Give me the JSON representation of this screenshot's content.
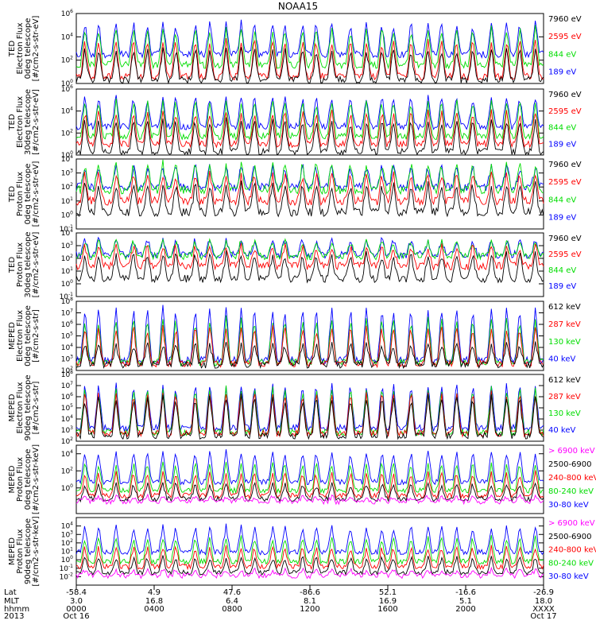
{
  "title": "NOAA15",
  "colors": {
    "blue": "#0000ff",
    "red": "#ff0000",
    "green": "#00dd00",
    "black": "#000000",
    "magenta": "#ff00ff"
  },
  "footer": {
    "row_labels": [
      "Lat",
      "MLT",
      "hhmm",
      "2013"
    ],
    "ticks": [
      {
        "lat": "-58.4",
        "mlt": "3.0",
        "hhmm": "0000",
        "date": "Oct 16"
      },
      {
        "lat": "4.9",
        "mlt": "16.8",
        "hhmm": "0400",
        "date": ""
      },
      {
        "lat": "47.6",
        "mlt": "6.4",
        "hhmm": "0800",
        "date": ""
      },
      {
        "lat": "-86.6",
        "mlt": "8.1",
        "hhmm": "1200",
        "date": ""
      },
      {
        "lat": "52.1",
        "mlt": "16.9",
        "hhmm": "1600",
        "date": ""
      },
      {
        "lat": "-16.6",
        "mlt": "5.1",
        "hhmm": "2000",
        "date": ""
      },
      {
        "lat": "-26.9",
        "mlt": "18.0",
        "hhmm": "XXXX",
        "date": "Oct 17"
      }
    ]
  },
  "chart_data": [
    {
      "type": "line",
      "ylog": true,
      "ylim_exp": [
        0,
        6
      ],
      "y_exponents": [
        0,
        2,
        4,
        6
      ],
      "ylabel": [
        "TED",
        "Electron Flux",
        "0deg telescope",
        "[#/cm2-s-str-eV]"
      ],
      "legend": [
        {
          "label": "7960 eV",
          "color": "#000000"
        },
        {
          "label": "2595 eV",
          "color": "#ff0000"
        },
        {
          "label": "844 eV",
          "color": "#00dd00"
        },
        {
          "label": "189 eV",
          "color": "#0000ff"
        }
      ],
      "series_levels": {
        "blue": 2.5,
        "green": 1.6,
        "red": 0.6,
        "black": 0.3
      },
      "series_peaks": {
        "blue": 5.2,
        "green": 4.8,
        "red": 3.8,
        "black": 3.0
      }
    },
    {
      "type": "line",
      "ylog": true,
      "ylim_exp": [
        0,
        6
      ],
      "y_exponents": [
        0,
        2,
        4,
        6
      ],
      "ylabel": [
        "TED",
        "Electron Flux",
        "30deg telescope",
        "[#/cm2-s-str-eV]"
      ],
      "legend": [
        {
          "label": "7960 eV",
          "color": "#000000"
        },
        {
          "label": "2595 eV",
          "color": "#ff0000"
        },
        {
          "label": "844 eV",
          "color": "#00dd00"
        },
        {
          "label": "189 eV",
          "color": "#0000ff"
        }
      ],
      "series_levels": {
        "blue": 2.6,
        "green": 1.7,
        "red": 1.0,
        "black": 0.3
      },
      "series_peaks": {
        "blue": 5.3,
        "green": 5.0,
        "red": 4.0,
        "black": 3.2
      }
    },
    {
      "type": "line",
      "ylog": true,
      "ylim_exp": [
        -1,
        4
      ],
      "y_exponents": [
        -1,
        0,
        1,
        2,
        3,
        4
      ],
      "ylabel": [
        "TED",
        "Proton Flux",
        "0deg telescope",
        "[#/cm2-s-str-eV]"
      ],
      "legend": [
        {
          "label": "7960 eV",
          "color": "#000000"
        },
        {
          "label": "2595 eV",
          "color": "#ff0000"
        },
        {
          "label": "844 eV",
          "color": "#00dd00"
        },
        {
          "label": "189 eV",
          "color": "#0000ff"
        }
      ],
      "series_levels": {
        "blue": 2.0,
        "green": 1.8,
        "red": 1.0,
        "black": 0.2
      },
      "series_peaks": {
        "blue": 3.5,
        "green": 3.7,
        "red": 3.0,
        "black": 2.2
      }
    },
    {
      "type": "line",
      "ylog": true,
      "ylim_exp": [
        -1,
        4
      ],
      "y_exponents": [
        -1,
        0,
        1,
        2,
        3,
        4
      ],
      "ylabel": [
        "TED",
        "Proton Flux",
        "30deg telescope",
        "[#/cm2-s-str-eV]"
      ],
      "legend": [
        {
          "label": "7960 eV",
          "color": "#000000"
        },
        {
          "label": "2595 eV",
          "color": "#ff0000"
        },
        {
          "label": "844 eV",
          "color": "#00dd00"
        },
        {
          "label": "189 eV",
          "color": "#0000ff"
        }
      ],
      "series_levels": {
        "blue": 2.3,
        "green": 2.2,
        "red": 1.4,
        "black": 0.4
      },
      "series_peaks": {
        "blue": 3.5,
        "green": 3.4,
        "red": 3.0,
        "black": 2.4
      }
    },
    {
      "type": "line",
      "ylog": true,
      "ylim_exp": [
        2,
        8
      ],
      "y_exponents": [
        2,
        3,
        4,
        5,
        6,
        7,
        8
      ],
      "ylabel": [
        "MEPED",
        "Electron Flux",
        "0deg telescope",
        "[#/cm2-s-str]"
      ],
      "legend": [
        {
          "label": "612 keV",
          "color": "#000000"
        },
        {
          "label": "287 keV",
          "color": "#ff0000"
        },
        {
          "label": "130 keV",
          "color": "#00dd00"
        },
        {
          "label": "40 keV",
          "color": "#0000ff"
        }
      ],
      "series_levels": {
        "blue": 2.9,
        "green": 2.7,
        "red": 2.6,
        "black": 2.5
      },
      "series_peaks": {
        "blue": 7.5,
        "green": 6.5,
        "red": 5.8,
        "black": 4.3
      }
    },
    {
      "type": "line",
      "ylog": true,
      "ylim_exp": [
        2,
        8
      ],
      "y_exponents": [
        2,
        3,
        4,
        5,
        6,
        7,
        8
      ],
      "ylabel": [
        "MEPED",
        "Electron Flux",
        "90deg telescope",
        "[#/cm2-s-str]"
      ],
      "legend": [
        {
          "label": "612 keV",
          "color": "#000000"
        },
        {
          "label": "287 keV",
          "color": "#ff0000"
        },
        {
          "label": "130 keV",
          "color": "#00dd00"
        },
        {
          "label": "40 keV",
          "color": "#0000ff"
        }
      ],
      "series_levels": {
        "blue": 3.2,
        "green": 2.8,
        "red": 2.7,
        "black": 2.5
      },
      "series_peaks": {
        "blue": 7.2,
        "green": 6.8,
        "red": 6.4,
        "black": 6.0
      }
    },
    {
      "type": "line",
      "ylog": true,
      "ylim_exp": [
        -3,
        5
      ],
      "y_exponents": [
        0,
        2,
        4
      ],
      "ylabel": [
        "MEPED",
        "Proton Flux",
        "0deg telescope",
        "[#/cm2-s-str-keV]"
      ],
      "legend": [
        {
          "label": "> 6900 keV",
          "color": "#ff00ff"
        },
        {
          "label": "2500-6900",
          "color": "#000000"
        },
        {
          "label": "240-800 keV",
          "color": "#ff0000"
        },
        {
          "label": "80-240 keV",
          "color": "#00dd00"
        },
        {
          "label": "30-80 keV",
          "color": "#0000ff"
        }
      ],
      "series_levels": {
        "blue": 0.7,
        "green": -0.3,
        "red": -0.9,
        "black": -1.3,
        "magenta": -1.6
      },
      "series_peaks": {
        "blue": 4.3,
        "green": 3.0,
        "red": 1.8,
        "black": 0.5,
        "magenta": -1.0
      }
    },
    {
      "type": "line",
      "ylog": true,
      "ylim_exp": [
        -3,
        5
      ],
      "y_exponents": [
        -2,
        -1,
        0,
        1,
        2,
        3,
        4
      ],
      "ylabel": [
        "MEPED",
        "Proton Flux",
        "90deg telescope",
        "[#/cm2-s-str-keV]"
      ],
      "legend": [
        {
          "label": "> 6900 keV",
          "color": "#ff00ff"
        },
        {
          "label": "2500-6900",
          "color": "#000000"
        },
        {
          "label": "240-800 keV",
          "color": "#ff0000"
        },
        {
          "label": "80-240 keV",
          "color": "#00dd00"
        },
        {
          "label": "30-80 keV",
          "color": "#0000ff"
        }
      ],
      "series_levels": {
        "blue": 0.9,
        "green": -0.2,
        "red": -0.8,
        "black": -1.5,
        "magenta": -1.9
      },
      "series_peaks": {
        "blue": 4.0,
        "green": 2.7,
        "red": 1.5,
        "black": 0.3,
        "magenta": -1.2
      }
    }
  ]
}
